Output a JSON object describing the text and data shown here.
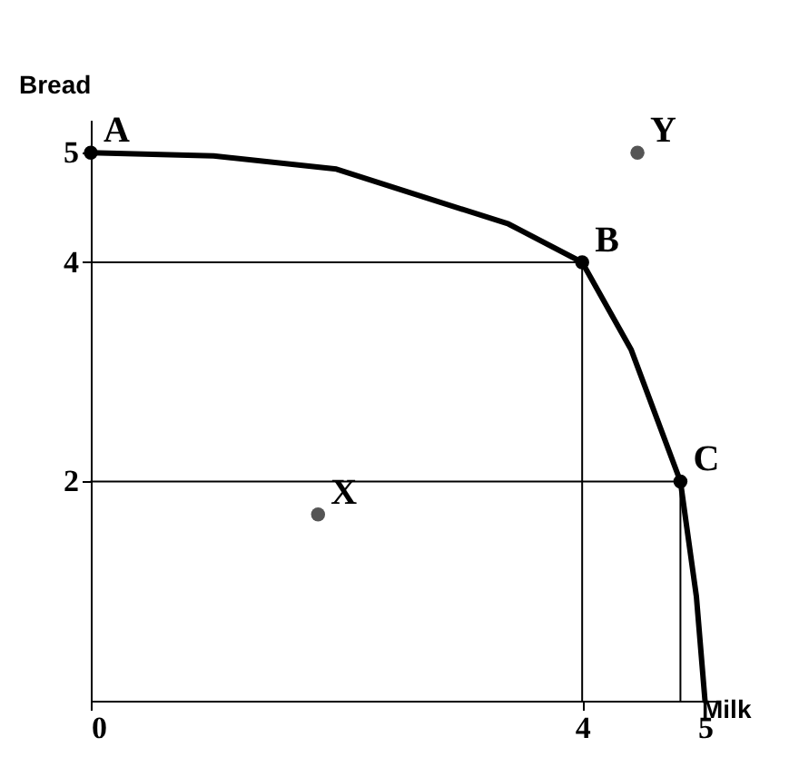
{
  "chart_data": {
    "type": "line",
    "xlabel": "Milk",
    "ylabel": "Bread",
    "xlim": [
      0,
      5.1
    ],
    "ylim": [
      0,
      5.3
    ],
    "xticks": [
      0,
      4,
      5
    ],
    "yticks": [
      2,
      4,
      5
    ],
    "grid": false,
    "series": [
      {
        "type": "line",
        "color": "#000000",
        "x": [
          0,
          1,
          2,
          2.7,
          3.4,
          4,
          4.4,
          4.8,
          4.93,
          5
        ],
        "values": [
          5,
          4.97,
          4.85,
          4.6,
          4.35,
          4,
          3.2,
          2,
          0.95,
          0
        ]
      },
      {
        "type": "line",
        "color": "#000000",
        "x": [
          0,
          4,
          4
        ],
        "values": [
          4,
          4,
          0
        ]
      },
      {
        "type": "line",
        "color": "#000000",
        "x": [
          0,
          4.8,
          4.8
        ],
        "values": [
          2,
          2,
          0
        ]
      },
      {
        "type": "scatter",
        "marker": "circle",
        "color": "#000000",
        "x": [
          0,
          4,
          4.8
        ],
        "values": [
          5,
          4,
          2
        ]
      },
      {
        "type": "scatter",
        "marker": "circle",
        "color": "#555555",
        "x": [
          1.85,
          4.45
        ],
        "values": [
          1.7,
          5
        ]
      }
    ],
    "annotations": [
      {
        "text": "A",
        "x": 0,
        "y": 5
      },
      {
        "text": "B",
        "x": 4,
        "y": 4
      },
      {
        "text": "C",
        "x": 4.8,
        "y": 2
      },
      {
        "text": "X",
        "x": 1.85,
        "y": 1.7
      },
      {
        "text": "Y",
        "x": 4.45,
        "y": 5
      }
    ]
  }
}
